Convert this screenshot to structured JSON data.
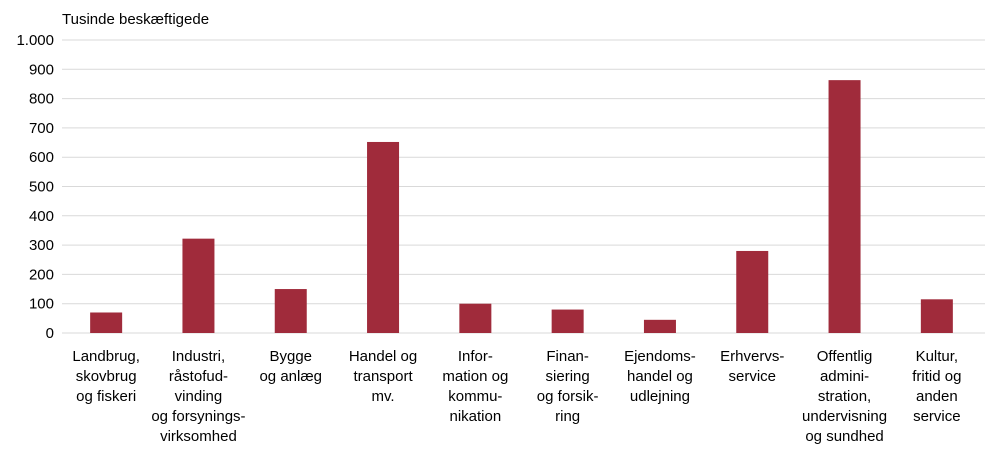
{
  "chart_data": {
    "type": "bar",
    "title": "Tusinde beskæftigede",
    "categories": [
      [
        "Landbrug,",
        "skovbrug",
        "og fiskeri"
      ],
      [
        "Industri,",
        "råstofud-",
        "vinding",
        "og forsynings-",
        "virksomhed"
      ],
      [
        "Bygge",
        "og anlæg"
      ],
      [
        "Handel og",
        "transport",
        "mv."
      ],
      [
        "Infor-",
        "mation og",
        "kommu-",
        "nikation"
      ],
      [
        "Finan-",
        "siering",
        "og forsik-",
        "ring"
      ],
      [
        "Ejendoms-",
        "handel og",
        "udlejning"
      ],
      [
        "Erhvervs-",
        "service"
      ],
      [
        "Offentlig",
        "admini-",
        "stration,",
        "undervisning",
        "og sundhed"
      ],
      [
        "Kultur,",
        "fritid og",
        "anden",
        "service"
      ]
    ],
    "values": [
      70,
      322,
      150,
      652,
      100,
      80,
      45,
      280,
      863,
      115
    ],
    "color": "#a02b3b",
    "ylim": [
      0,
      1000
    ],
    "yticks": [
      0,
      100,
      200,
      300,
      400,
      500,
      600,
      700,
      800,
      900,
      {
        "value": 1000,
        "label": "1.000"
      }
    ],
    "grid": true
  }
}
